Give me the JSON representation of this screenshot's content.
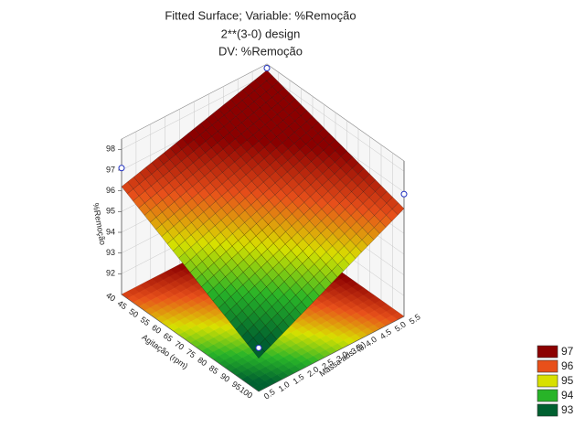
{
  "chart_data": {
    "type": "surface3d",
    "title": [
      "Fitted Surface; Variable: %Remoção",
      "2**(3-0) design",
      "DV: %Remoção"
    ],
    "x_label": "Agitação (rpm)",
    "y_label": "Massa ads. (g)",
    "z_label": "%Remoção",
    "x": [
      40,
      55,
      70,
      85,
      100
    ],
    "y": [
      0.5,
      1.75,
      3,
      4.25,
      5.5
    ],
    "z": [
      [
        96.2,
        96.7,
        97.2,
        97.7,
        98.2
      ],
      [
        95.3,
        95.9,
        96.5,
        97.1,
        97.7
      ],
      [
        94.4,
        95.1,
        95.8,
        96.5,
        97.2
      ],
      [
        93.5,
        94.3,
        95.1,
        95.9,
        96.7
      ],
      [
        92.6,
        93.5,
        94.4,
        95.3,
        96.2
      ]
    ],
    "xlim": [
      40,
      100
    ],
    "ylim": [
      0.5,
      5.5
    ],
    "zlim": [
      91,
      98.5
    ],
    "xticks": [
      40,
      45,
      50,
      55,
      60,
      65,
      70,
      75,
      80,
      85,
      90,
      95,
      100
    ],
    "yticks": [
      0.5,
      {
        "value": 1,
        "label": "1.0"
      },
      1.5,
      {
        "value": 2,
        "label": "2.0"
      },
      2.5,
      {
        "value": 3,
        "label": "3.0"
      },
      3.5,
      {
        "value": 4,
        "label": "4.0"
      },
      4.5,
      {
        "value": 5,
        "label": "5.0"
      },
      5.5
    ],
    "zticks": [
      92,
      93,
      94,
      95,
      96,
      97,
      98
    ],
    "points": {
      "x": [
        40,
        40,
        100,
        100
      ],
      "y": [
        0.5,
        5.5,
        5.5,
        0.5
      ],
      "z": [
        97.1,
        98.3,
        96.9,
        93.1
      ]
    },
    "legend": {
      "position": "lower right",
      "levels": [
        97,
        96,
        95,
        94,
        93
      ],
      "colors": [
        "#8b0000",
        "#e8501a",
        "#d8e000",
        "#28b428",
        "#006030"
      ]
    }
  }
}
